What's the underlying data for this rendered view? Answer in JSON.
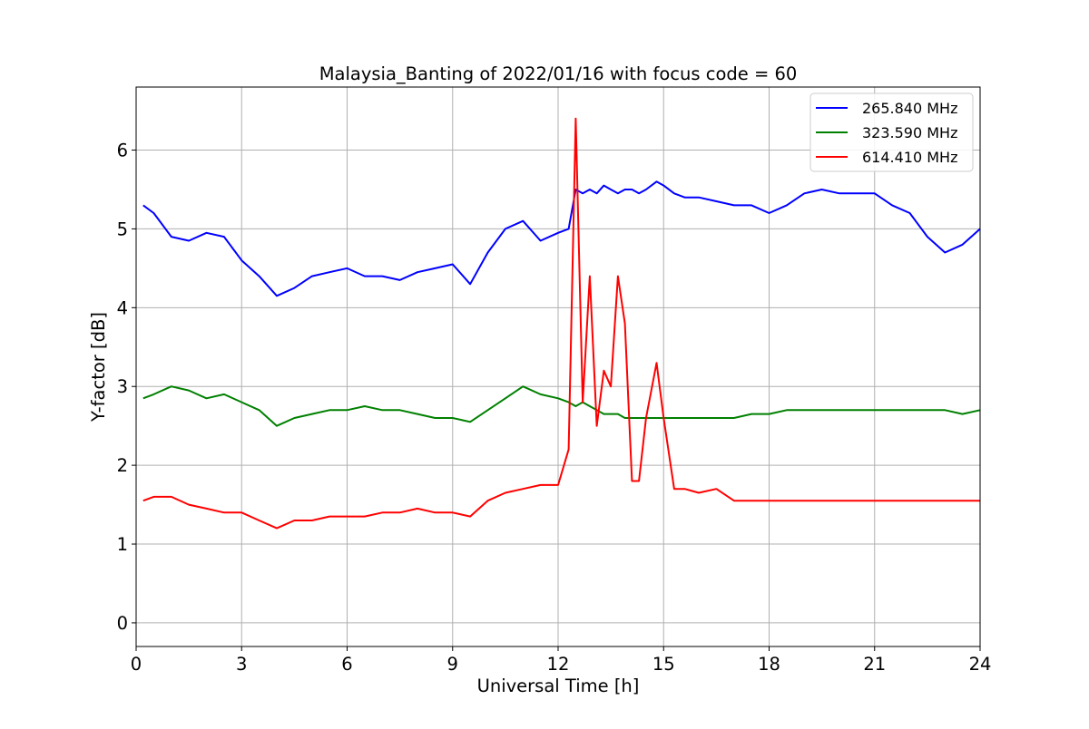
{
  "chart_data": {
    "type": "line",
    "title": "Malaysia_Banting of 2022/01/16 with focus code = 60",
    "xlabel": "Universal Time [h]",
    "ylabel": "Y-factor [dB]",
    "xlim": [
      0,
      24
    ],
    "ylim": [
      -0.3,
      6.8
    ],
    "xticks": [
      0,
      3,
      6,
      9,
      12,
      15,
      18,
      21,
      24
    ],
    "xtick_labels": [
      "0",
      "3",
      "6",
      "9",
      "12",
      "15",
      "18",
      "21",
      "24"
    ],
    "yticks": [
      0,
      1,
      2,
      3,
      4,
      5,
      6
    ],
    "ytick_labels": [
      "0",
      "1",
      "2",
      "3",
      "4",
      "5",
      "6"
    ],
    "grid": true,
    "legend_position": "top-right",
    "x": [
      0.2,
      0.5,
      1.0,
      1.5,
      2.0,
      2.5,
      3.0,
      3.5,
      4.0,
      4.5,
      5.0,
      5.5,
      6.0,
      6.5,
      7.0,
      7.5,
      8.0,
      8.5,
      9.0,
      9.5,
      10.0,
      10.5,
      11.0,
      11.5,
      12.0,
      12.3,
      12.5,
      12.7,
      12.9,
      13.1,
      13.3,
      13.5,
      13.7,
      13.9,
      14.1,
      14.3,
      14.5,
      14.8,
      15.0,
      15.3,
      15.6,
      16.0,
      16.5,
      17.0,
      17.5,
      18.0,
      18.5,
      19.0,
      19.5,
      20.0,
      20.5,
      21.0,
      21.5,
      22.0,
      22.5,
      23.0,
      23.5,
      24.0
    ],
    "series": [
      {
        "name": "265.840 MHz",
        "color": "#0000ff",
        "values": [
          5.3,
          5.2,
          4.9,
          4.85,
          4.95,
          4.9,
          4.6,
          4.4,
          4.15,
          4.25,
          4.4,
          4.45,
          4.5,
          4.4,
          4.4,
          4.35,
          4.45,
          4.5,
          4.55,
          4.3,
          4.7,
          5.0,
          5.1,
          4.85,
          4.95,
          5.0,
          5.5,
          5.45,
          5.5,
          5.45,
          5.55,
          5.5,
          5.45,
          5.5,
          5.5,
          5.45,
          5.5,
          5.6,
          5.55,
          5.45,
          5.4,
          5.4,
          5.35,
          5.3,
          5.3,
          5.2,
          5.3,
          5.45,
          5.5,
          5.45,
          5.45,
          5.45,
          5.3,
          5.2,
          4.9,
          4.7,
          4.8,
          5.0
        ]
      },
      {
        "name": "323.590 MHz",
        "color": "#008000",
        "values": [
          2.85,
          2.9,
          3.0,
          2.95,
          2.85,
          2.9,
          2.8,
          2.7,
          2.5,
          2.6,
          2.65,
          2.7,
          2.7,
          2.75,
          2.7,
          2.7,
          2.65,
          2.6,
          2.6,
          2.55,
          2.7,
          2.85,
          3.0,
          2.9,
          2.85,
          2.8,
          2.75,
          2.8,
          2.75,
          2.7,
          2.65,
          2.65,
          2.65,
          2.6,
          2.6,
          2.6,
          2.6,
          2.6,
          2.6,
          2.6,
          2.6,
          2.6,
          2.6,
          2.6,
          2.65,
          2.65,
          2.7,
          2.7,
          2.7,
          2.7,
          2.7,
          2.7,
          2.7,
          2.7,
          2.7,
          2.7,
          2.65,
          2.7
        ]
      },
      {
        "name": "614.410 MHz",
        "color": "#ff0000",
        "values": [
          1.55,
          1.6,
          1.6,
          1.5,
          1.45,
          1.4,
          1.4,
          1.3,
          1.2,
          1.3,
          1.3,
          1.35,
          1.35,
          1.35,
          1.4,
          1.4,
          1.45,
          1.4,
          1.4,
          1.35,
          1.55,
          1.65,
          1.7,
          1.75,
          1.75,
          2.2,
          6.4,
          2.8,
          4.4,
          2.5,
          3.2,
          3.0,
          4.4,
          3.8,
          1.8,
          1.8,
          2.6,
          3.3,
          2.6,
          1.7,
          1.7,
          1.65,
          1.7,
          1.55,
          1.55,
          1.55,
          1.55,
          1.55,
          1.55,
          1.55,
          1.55,
          1.55,
          1.55,
          1.55,
          1.55,
          1.55,
          1.55,
          1.55
        ]
      }
    ]
  }
}
